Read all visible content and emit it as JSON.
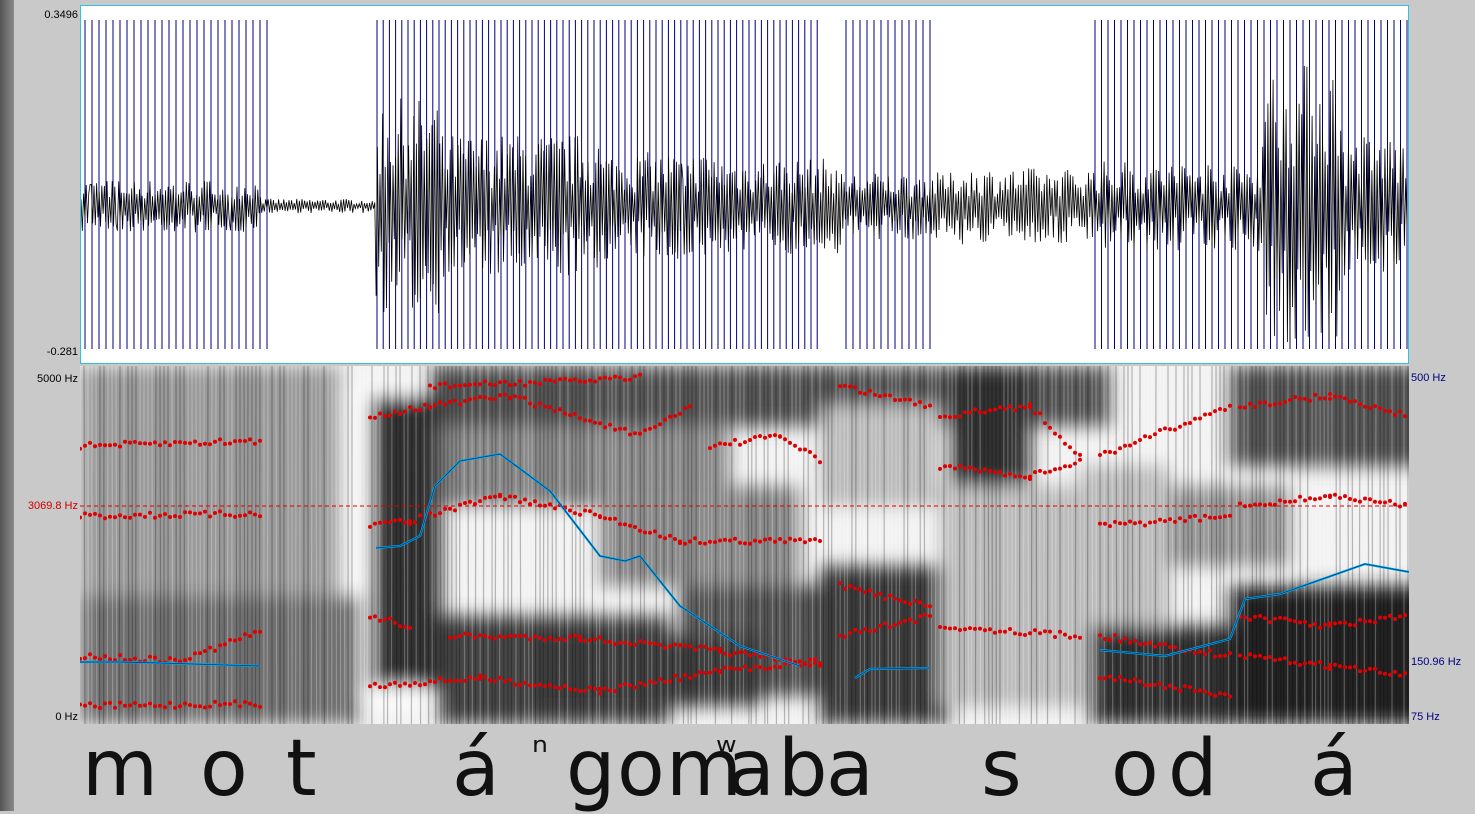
{
  "waveform": {
    "y_max_label": "0.3496",
    "y_min_label": "-0.281"
  },
  "spectrogram": {
    "freq_max_label": "5000 Hz",
    "formant_cursor_label": "3069.8 Hz",
    "freq_min_label": "0 Hz"
  },
  "pitch_axis": {
    "max_label": "500 Hz",
    "cursor_label": "150.96 Hz",
    "min_label": "75 Hz"
  },
  "colors": {
    "waveform": "#000000",
    "pulses": "#000080",
    "formants": "#e00000",
    "pitch": "#00a8e8",
    "cursor": "#e00000"
  },
  "transcription": {
    "segments": [
      "m",
      "o",
      "t",
      "á",
      "ⁿ",
      "g",
      "o",
      "m",
      "ʷ",
      "a",
      "b",
      "a",
      "s",
      "o",
      "d",
      "á"
    ]
  }
}
